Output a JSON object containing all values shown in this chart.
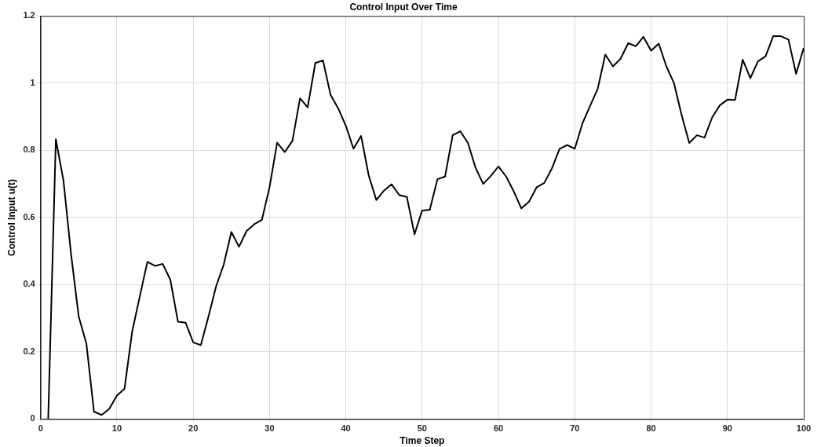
{
  "chart_data": {
    "type": "line",
    "title": "Control Input Over Time",
    "xlabel": "Time Step",
    "ylabel": "Control Input u(t)",
    "x": [
      1,
      2,
      3,
      4,
      5,
      6,
      7,
      8,
      9,
      10,
      11,
      12,
      13,
      14,
      15,
      16,
      17,
      18,
      19,
      20,
      21,
      22,
      23,
      24,
      25,
      26,
      27,
      28,
      29,
      30,
      31,
      32,
      33,
      34,
      35,
      36,
      37,
      38,
      39,
      40,
      41,
      42,
      43,
      44,
      45,
      46,
      47,
      48,
      49,
      50,
      51,
      52,
      53,
      54,
      55,
      56,
      57,
      58,
      59,
      60,
      61,
      62,
      63,
      64,
      65,
      66,
      67,
      68,
      69,
      70,
      71,
      72,
      73,
      74,
      75,
      76,
      77,
      78,
      79,
      80,
      81,
      82,
      83,
      84,
      85,
      86,
      87,
      88,
      89,
      90,
      91,
      92,
      93,
      94,
      95,
      96,
      97,
      98,
      99,
      100
    ],
    "series": [
      {
        "color": "#000000",
        "values": [
          0,
          0.833,
          0.71,
          0.49,
          0.305,
          0.225,
          0.022,
          0.012,
          0.03,
          0.07,
          0.09,
          0.26,
          0.365,
          0.468,
          0.456,
          0.462,
          0.415,
          0.29,
          0.287,
          0.228,
          0.22,
          0.305,
          0.395,
          0.46,
          0.557,
          0.513,
          0.56,
          0.58,
          0.593,
          0.69,
          0.823,
          0.795,
          0.828,
          0.955,
          0.928,
          1.06,
          1.068,
          0.965,
          0.925,
          0.873,
          0.805,
          0.843,
          0.725,
          0.652,
          0.68,
          0.699,
          0.667,
          0.661,
          0.55,
          0.621,
          0.623,
          0.714,
          0.722,
          0.845,
          0.857,
          0.822,
          0.748,
          0.7,
          0.724,
          0.752,
          0.722,
          0.678,
          0.627,
          0.647,
          0.69,
          0.703,
          0.746,
          0.804,
          0.816,
          0.805,
          0.88,
          0.932,
          0.983,
          1.085,
          1.05,
          1.073,
          1.119,
          1.11,
          1.138,
          1.097,
          1.118,
          1.05,
          1.0,
          0.905,
          0.822,
          0.845,
          0.838,
          0.898,
          0.934,
          0.951,
          0.95,
          1.07,
          1.015,
          1.065,
          1.08,
          1.14,
          1.14,
          1.13,
          1.028,
          1.105
        ]
      }
    ],
    "xlim": [
      0,
      100
    ],
    "xticks": [
      0,
      10,
      20,
      30,
      40,
      50,
      60,
      70,
      80,
      90,
      100
    ],
    "ylim": [
      0,
      1.2
    ],
    "yticks": [
      0,
      0.2,
      0.4,
      0.6,
      0.8,
      1,
      1.2
    ],
    "grid": true,
    "legend": false,
    "marker": "none",
    "line_style": "solid"
  }
}
